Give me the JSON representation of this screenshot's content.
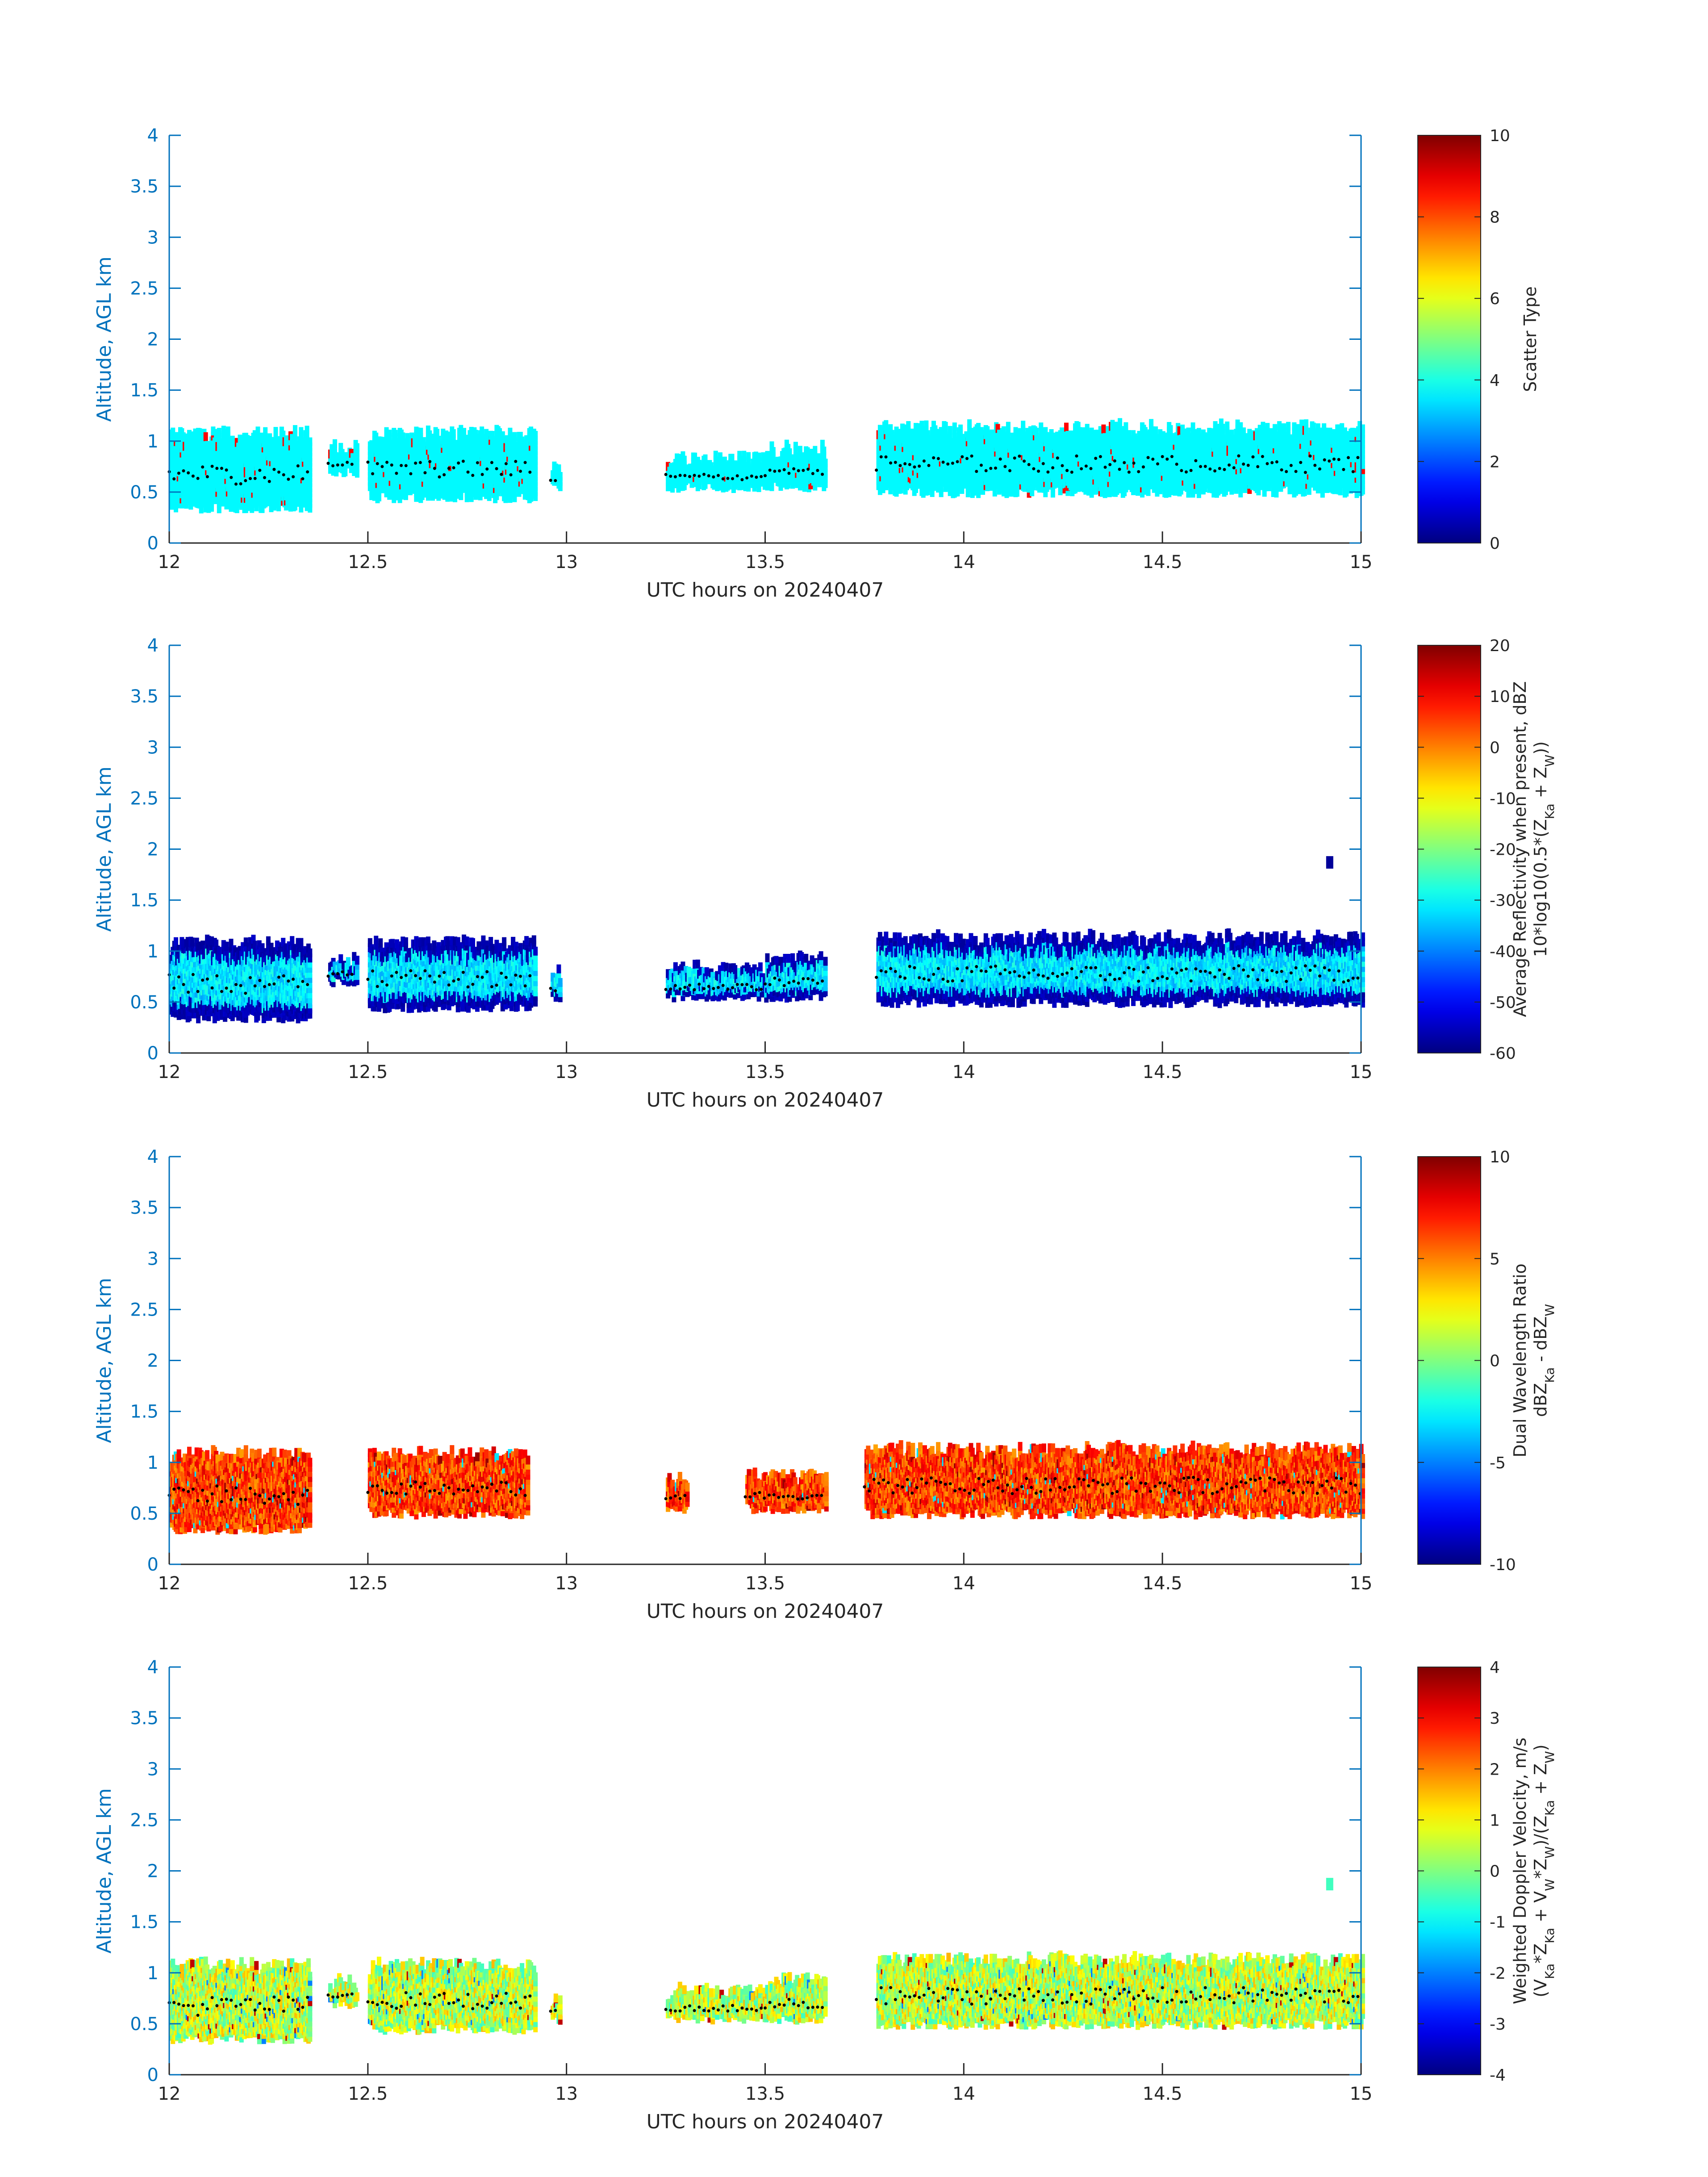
{
  "figure": {
    "panel_count": 4
  },
  "colors": {
    "axis": "#0072BD",
    "text": "#262626",
    "background": "#ffffff",
    "colormap": "jet",
    "layer_marker": "#000000"
  },
  "chart_data": [
    {
      "type": "heatmap",
      "title": "",
      "xlabel": "UTC hours on 20240407",
      "ylabel": "Altitude, AGL km",
      "xlim": [
        12,
        15
      ],
      "ylim": [
        0,
        4
      ],
      "xticks": [
        "12",
        "12.5",
        "13",
        "13.5",
        "14",
        "14.5",
        "15"
      ],
      "yticks": [
        "0",
        "0.5",
        "1",
        "1.5",
        "2",
        "2.5",
        "3",
        "3.5",
        "4"
      ],
      "colorbar": {
        "label_lines": [
          "Scatter Type"
        ],
        "clim": [
          0,
          10
        ],
        "ticks": [
          "0",
          "2",
          "4",
          "6",
          "8",
          "10"
        ]
      },
      "dominant_value": 3.7,
      "minority_value": 8.7,
      "segments": [
        {
          "x": [
            12.0,
            12.35
          ],
          "ybot": 0.35,
          "ytop": 1.0
        },
        {
          "x": [
            12.4,
            12.47
          ],
          "ybot": 0.7,
          "ytop": 0.85
        },
        {
          "x": [
            12.5,
            12.92
          ],
          "ybot": 0.45,
          "ytop": 1.0
        },
        {
          "x": [
            12.96,
            12.98
          ],
          "ybot": 0.55,
          "ytop": 0.7
        },
        {
          "x": [
            13.25,
            13.5
          ],
          "ybot": 0.55,
          "ytop": 0.75
        },
        {
          "x": [
            13.5,
            13.65
          ],
          "ybot": 0.55,
          "ytop": 0.85
        },
        {
          "x": [
            13.78,
            15.0
          ],
          "ybot": 0.5,
          "ytop": 1.05
        }
      ]
    },
    {
      "type": "heatmap",
      "title": "",
      "xlabel": "UTC hours on 20240407",
      "ylabel": "Altitude, AGL km",
      "xlim": [
        12,
        15
      ],
      "ylim": [
        0,
        4
      ],
      "xticks": [
        "12",
        "12.5",
        "13",
        "13.5",
        "14",
        "14.5",
        "15"
      ],
      "yticks": [
        "0",
        "0.5",
        "1",
        "1.5",
        "2",
        "2.5",
        "3",
        "3.5",
        "4"
      ],
      "colorbar": {
        "label_lines": [
          "Average Reflectivity when present, dBZ",
          "10*log10(0.5*(Z_Ka + Z_W))"
        ],
        "clim": [
          -60,
          20
        ],
        "ticks": [
          "-60",
          "-50",
          "-40",
          "-30",
          "-20",
          "-10",
          "0",
          "10",
          "20"
        ]
      },
      "edge_value": -58,
      "core_value": -32,
      "segments": [
        {
          "x": [
            12.0,
            12.35
          ],
          "ybot": 0.35,
          "ytop": 1.0
        },
        {
          "x": [
            12.4,
            12.47
          ],
          "ybot": 0.7,
          "ytop": 0.85
        },
        {
          "x": [
            12.5,
            12.92
          ],
          "ybot": 0.45,
          "ytop": 1.0
        },
        {
          "x": [
            12.96,
            12.98
          ],
          "ybot": 0.55,
          "ytop": 0.7
        },
        {
          "x": [
            13.25,
            13.5
          ],
          "ybot": 0.55,
          "ytop": 0.75
        },
        {
          "x": [
            13.5,
            13.65
          ],
          "ybot": 0.55,
          "ytop": 0.85
        },
        {
          "x": [
            13.78,
            15.0
          ],
          "ybot": 0.5,
          "ytop": 1.05
        }
      ],
      "isolated_echo": {
        "x": 14.92,
        "y": 1.87,
        "value": -58
      }
    },
    {
      "type": "heatmap",
      "title": "",
      "xlabel": "UTC hours on 20240407",
      "ylabel": "Altitude, AGL km",
      "xlim": [
        12,
        15
      ],
      "ylim": [
        0,
        4
      ],
      "xticks": [
        "12",
        "12.5",
        "13",
        "13.5",
        "14",
        "14.5",
        "15"
      ],
      "yticks": [
        "0",
        "0.5",
        "1",
        "1.5",
        "2",
        "2.5",
        "3",
        "3.5",
        "4"
      ],
      "colorbar": {
        "label_lines": [
          "Dual Wavelength Ratio",
          "dBZ_Ka - dBZ_W"
        ],
        "clim": [
          -10,
          10
        ],
        "ticks": [
          "-10",
          "-5",
          "0",
          "5",
          "10"
        ]
      },
      "typical_value": 6.3,
      "segments": [
        {
          "x": [
            12.0,
            12.35
          ],
          "ybot": 0.35,
          "ytop": 1.0
        },
        {
          "x": [
            12.5,
            12.9
          ],
          "ybot": 0.5,
          "ytop": 1.0
        },
        {
          "x": [
            13.25,
            13.3
          ],
          "ybot": 0.55,
          "ytop": 0.75
        },
        {
          "x": [
            13.45,
            13.65
          ],
          "ybot": 0.55,
          "ytop": 0.8
        },
        {
          "x": [
            13.75,
            15.0
          ],
          "ybot": 0.5,
          "ytop": 1.05
        }
      ]
    },
    {
      "type": "heatmap",
      "title": "",
      "xlabel": "UTC hours on 20240407",
      "ylabel": "Altitude, AGL km",
      "xlim": [
        12,
        15
      ],
      "ylim": [
        0,
        4
      ],
      "xticks": [
        "12",
        "12.5",
        "13",
        "13.5",
        "14",
        "14.5",
        "15"
      ],
      "yticks": [
        "0",
        "0.5",
        "1",
        "1.5",
        "2",
        "2.5",
        "3",
        "3.5",
        "4"
      ],
      "colorbar": {
        "label_lines": [
          "Weighted Doppler Velocity, m/s",
          "(V_Ka*Z_Ka + V_W*Z_W)/(Z_Ka + Z_W)"
        ],
        "clim": [
          -4,
          4
        ],
        "ticks": [
          "-4",
          "-3",
          "-2",
          "-1",
          "0",
          "1",
          "2",
          "3",
          "4"
        ]
      },
      "typical_value": 0.5,
      "segments": [
        {
          "x": [
            12.0,
            12.35
          ],
          "ybot": 0.35,
          "ytop": 1.0
        },
        {
          "x": [
            12.4,
            12.47
          ],
          "ybot": 0.7,
          "ytop": 0.85
        },
        {
          "x": [
            12.5,
            12.92
          ],
          "ybot": 0.45,
          "ytop": 1.0
        },
        {
          "x": [
            12.96,
            12.98
          ],
          "ybot": 0.55,
          "ytop": 0.7
        },
        {
          "x": [
            13.25,
            13.5
          ],
          "ybot": 0.55,
          "ytop": 0.75
        },
        {
          "x": [
            13.5,
            13.65
          ],
          "ybot": 0.55,
          "ytop": 0.85
        },
        {
          "x": [
            13.78,
            15.0
          ],
          "ybot": 0.5,
          "ytop": 1.05
        }
      ],
      "isolated_echo": {
        "x": 14.92,
        "y": 1.87,
        "value": -0.5
      }
    }
  ]
}
